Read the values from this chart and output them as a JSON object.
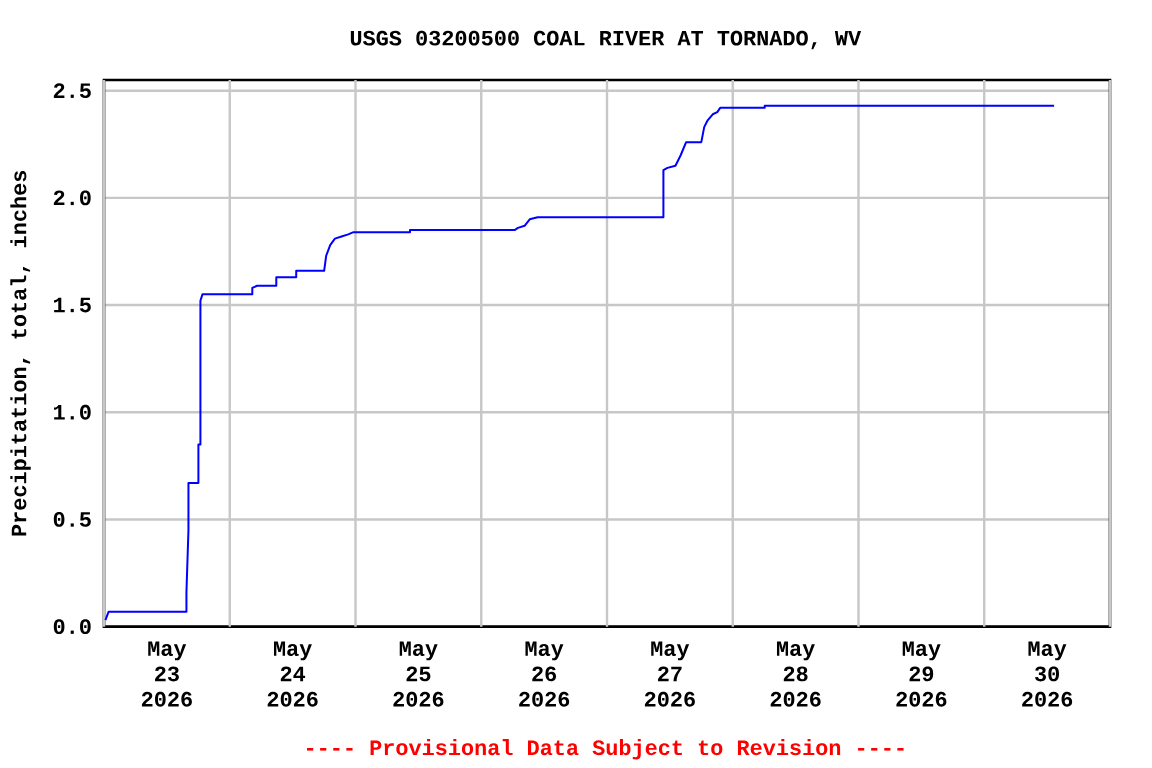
{
  "chart_data": {
    "type": "line",
    "title": "USGS 03200500 COAL RIVER AT TORNADO, WV",
    "ylabel": "Precipitation, total, inches",
    "annotations": [
      "---- Provisional Data Subject to Revision ----"
    ],
    "xlim": [
      "2026-05-23T00:00",
      "2026-05-31T00:00"
    ],
    "xticks": [
      {
        "value": "2026-05-23T00:00",
        "label": null
      },
      {
        "value": "2026-05-23T12:00",
        "label": "May 23 2026"
      },
      {
        "value": "2026-05-24T00:00",
        "label": null
      },
      {
        "value": "2026-05-24T12:00",
        "label": "May 24 2026"
      },
      {
        "value": "2026-05-25T00:00",
        "label": null
      },
      {
        "value": "2026-05-25T12:00",
        "label": "May 25 2026"
      },
      {
        "value": "2026-05-26T00:00",
        "label": null
      },
      {
        "value": "2026-05-26T12:00",
        "label": "May 26 2026"
      },
      {
        "value": "2026-05-27T00:00",
        "label": null
      },
      {
        "value": "2026-05-27T12:00",
        "label": "May 27 2026"
      },
      {
        "value": "2026-05-28T00:00",
        "label": null
      },
      {
        "value": "2026-05-28T12:00",
        "label": "May 28 2026"
      },
      {
        "value": "2026-05-29T00:00",
        "label": null
      },
      {
        "value": "2026-05-29T12:00",
        "label": "May 29 2026"
      },
      {
        "value": "2026-05-30T00:00",
        "label": null
      },
      {
        "value": "2026-05-30T12:00",
        "label": "May 30 2026"
      },
      {
        "value": "2026-05-31T00:00",
        "label": null
      }
    ],
    "ylim": [
      0,
      2.55
    ],
    "yticks": [
      {
        "value": 0,
        "label": "0.0"
      },
      {
        "value": 0.5,
        "label": "0.5"
      },
      {
        "value": 1,
        "label": "1.0"
      },
      {
        "value": 1.5,
        "label": "1.5"
      },
      {
        "value": 2,
        "label": "2.0"
      },
      {
        "value": 2.5,
        "label": "2.5"
      }
    ],
    "grid": true,
    "series": [
      {
        "color": "#0000ff",
        "x": [
          "2026-05-23T00:16",
          "2026-05-23T00:53",
          "2026-05-23T15:44",
          "2026-05-23T15:44",
          "2026-05-23T16:07",
          "2026-05-23T16:07",
          "2026-05-23T18:01",
          "2026-05-23T18:01",
          "2026-05-23T18:24",
          "2026-05-23T18:24",
          "2026-05-23T18:47",
          "2026-05-24T04:18",
          "2026-05-24T04:18",
          "2026-05-24T05:13",
          "2026-05-24T08:53",
          "2026-05-24T08:53",
          "2026-05-24T12:41",
          "2026-05-24T12:41",
          "2026-05-24T18:01",
          "2026-05-24T18:24",
          "2026-05-24T19:10",
          "2026-05-24T20:04",
          "2026-05-24T21:20",
          "2026-05-24T22:36",
          "2026-05-24T23:37",
          "2026-05-25T10:24",
          "2026-05-25T10:24",
          "2026-05-26T06:22",
          "2026-05-26T07:00",
          "2026-05-26T08:16",
          "2026-05-26T09:15",
          "2026-05-26T10:46",
          "2026-05-27T10:46",
          "2026-05-27T10:46",
          "2026-05-27T11:32",
          "2026-05-27T13:04",
          "2026-05-27T14:05",
          "2026-05-27T15:06",
          "2026-05-27T18:00",
          "2026-05-27T18:33",
          "2026-05-27T19:10",
          "2026-05-27T20:11",
          "2026-05-27T21:03",
          "2026-05-27T21:36",
          "2026-05-28T06:06",
          "2026-05-28T06:06",
          "2026-05-30T13:20"
        ],
        "values": [
          0.03,
          0.07,
          0.07,
          0.16,
          0.45,
          0.67,
          0.67,
          0.85,
          0.85,
          1.52,
          1.55,
          1.55,
          1.58,
          1.59,
          1.59,
          1.63,
          1.63,
          1.66,
          1.66,
          1.73,
          1.78,
          1.81,
          1.82,
          1.83,
          1.84,
          1.84,
          1.85,
          1.85,
          1.86,
          1.87,
          1.9,
          1.91,
          1.91,
          2.13,
          2.14,
          2.15,
          2.2,
          2.26,
          2.26,
          2.33,
          2.36,
          2.39,
          2.4,
          2.42,
          2.42,
          2.43,
          2.43
        ]
      }
    ]
  }
}
